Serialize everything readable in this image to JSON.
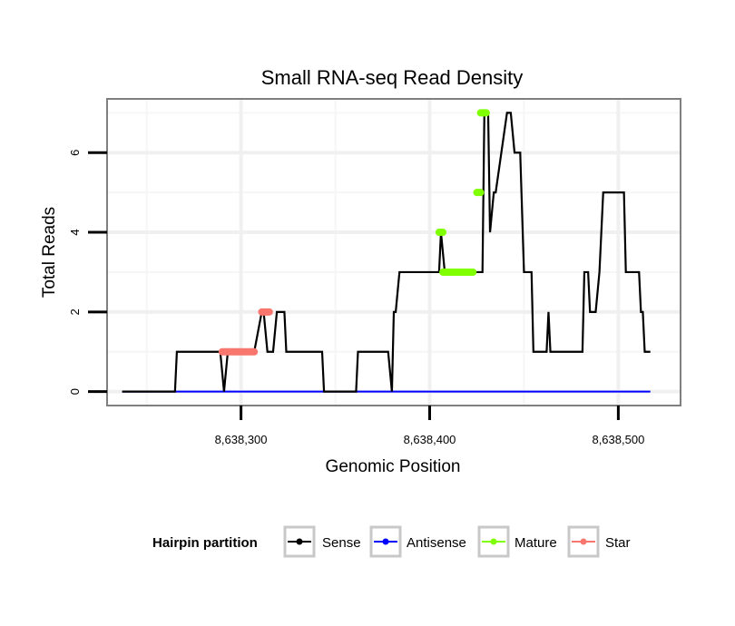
{
  "chart_data": {
    "type": "line",
    "title": "Small RNA-seq Read Density",
    "xlabel": "Genomic Position",
    "ylabel": "Total Reads",
    "xlim": [
      8638229,
      8638533
    ],
    "ylim": [
      -0.35,
      7.35
    ],
    "x_ticks": [
      8638300,
      8638400,
      8638500
    ],
    "x_tick_labels": [
      "8,638,300",
      "8,638,400",
      "8,638,500"
    ],
    "x_minor_ticks": [
      8638250,
      8638350,
      8638450
    ],
    "y_ticks": [
      0,
      2,
      4,
      6
    ],
    "y_tick_labels": [
      "0",
      "2",
      "4",
      "6"
    ],
    "y_minor_ticks": [
      1,
      3,
      5,
      7
    ],
    "grid": true,
    "legend": {
      "title": "Hairpin partition",
      "position": "bottom",
      "entries": [
        "Sense",
        "Antisense",
        "Mature",
        "Star"
      ]
    },
    "series": [
      {
        "name": "Sense",
        "color": "#000000",
        "x": [
          8638237,
          8638265,
          8638266,
          8638289,
          8638291,
          8638293,
          8638295,
          8638305,
          8638307,
          8638311,
          8638312,
          8638314,
          8638317,
          8638319,
          8638323,
          8638324,
          8638333,
          8638343,
          8638344,
          8638361,
          8638362,
          8638378,
          8638380,
          8638381,
          8638382,
          8638384,
          8638386,
          8638405,
          8638406,
          8638408,
          8638428,
          8638429,
          8638431,
          8638432,
          8638434,
          8638435,
          8638441,
          8638443,
          8638445,
          8638448,
          8638450,
          8638454,
          8638455,
          8638460,
          8638462,
          8638463,
          8638464,
          8638469,
          8638481,
          8638482,
          8638484,
          8638485,
          8638488,
          8638490,
          8638492,
          8638493,
          8638503,
          8638504,
          8638511,
          8638512,
          8638513,
          8638514,
          8638517
        ],
        "values": [
          0,
          0,
          1,
          1,
          0,
          1,
          1,
          1,
          1,
          2,
          2,
          1,
          1,
          2,
          2,
          1,
          1,
          1,
          0,
          0,
          1,
          1,
          0,
          2,
          2,
          3,
          3,
          3,
          4,
          3,
          3,
          7,
          7,
          4,
          5,
          5,
          7,
          7,
          6,
          6,
          3,
          3,
          1,
          1,
          1,
          2,
          1,
          1,
          1,
          3,
          3,
          2,
          2,
          3,
          5,
          5,
          5,
          3,
          3,
          2,
          2,
          1,
          1
        ]
      },
      {
        "name": "Antisense",
        "color": "#0000ff",
        "x": [
          8638237,
          8638517
        ],
        "values": [
          0,
          0
        ]
      },
      {
        "name": "Mature",
        "color": "#7fff00",
        "segments": [
          {
            "x": [
              8638405,
              8638407
            ],
            "values": [
              4,
              4
            ]
          },
          {
            "x": [
              8638407,
              8638423
            ],
            "values": [
              3,
              3
            ]
          },
          {
            "x": [
              8638425,
              8638427
            ],
            "values": [
              5,
              5
            ]
          },
          {
            "x": [
              8638427,
              8638430
            ],
            "values": [
              7,
              7
            ]
          }
        ]
      },
      {
        "name": "Star",
        "color": "#f8766d",
        "segments": [
          {
            "x": [
              8638290,
              8638307
            ],
            "values": [
              1,
              1
            ]
          },
          {
            "x": [
              8638311,
              8638315
            ],
            "values": [
              2,
              2
            ]
          }
        ]
      }
    ]
  }
}
